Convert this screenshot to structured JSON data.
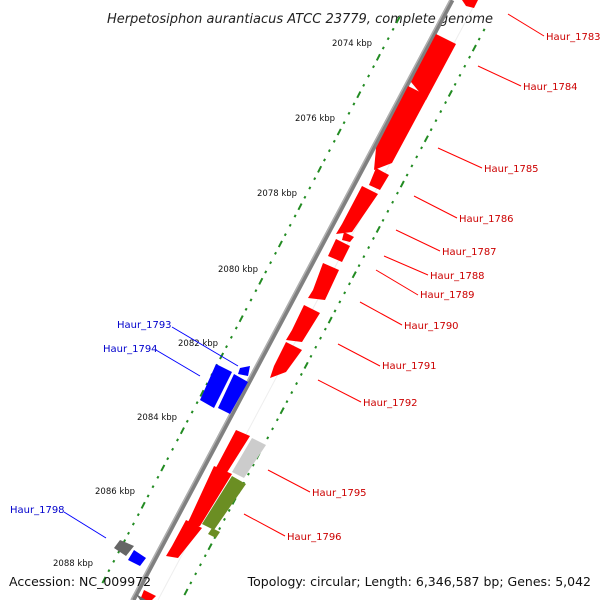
{
  "title": "Herpetosiphon aurantiacus ATCC 23779, complete genome",
  "accession": "Accession: NC_009972",
  "summary": "Topology: circular; Length: 6,346,587 bp; Genes: 5,042",
  "colors": {
    "forward_gene": "#ff0000",
    "reverse_gene": "#0000ff",
    "label_forward": "#cc0000",
    "label_reverse": "#0000cc",
    "gc_skew_dots": "#228b22",
    "backbone": "#808080",
    "grey_gene": "#cccccc",
    "dark_gene": "#666666",
    "olive_gene": "#6b8e23"
  },
  "ticks": [
    "2074 kbp",
    "2076 kbp",
    "2078 kbp",
    "2080 kbp",
    "2082 kbp",
    "2084 kbp",
    "2086 kbp",
    "2088 kbp"
  ],
  "labels_right": [
    "Haur_1783",
    "Haur_1784",
    "Haur_1785",
    "Haur_1786",
    "Haur_1787",
    "Haur_1788",
    "Haur_1789",
    "Haur_1790",
    "Haur_1791",
    "Haur_1792",
    "Haur_1795",
    "Haur_1796"
  ],
  "labels_left": [
    "Haur_1793",
    "Haur_1794",
    "Haur_1798"
  ]
}
